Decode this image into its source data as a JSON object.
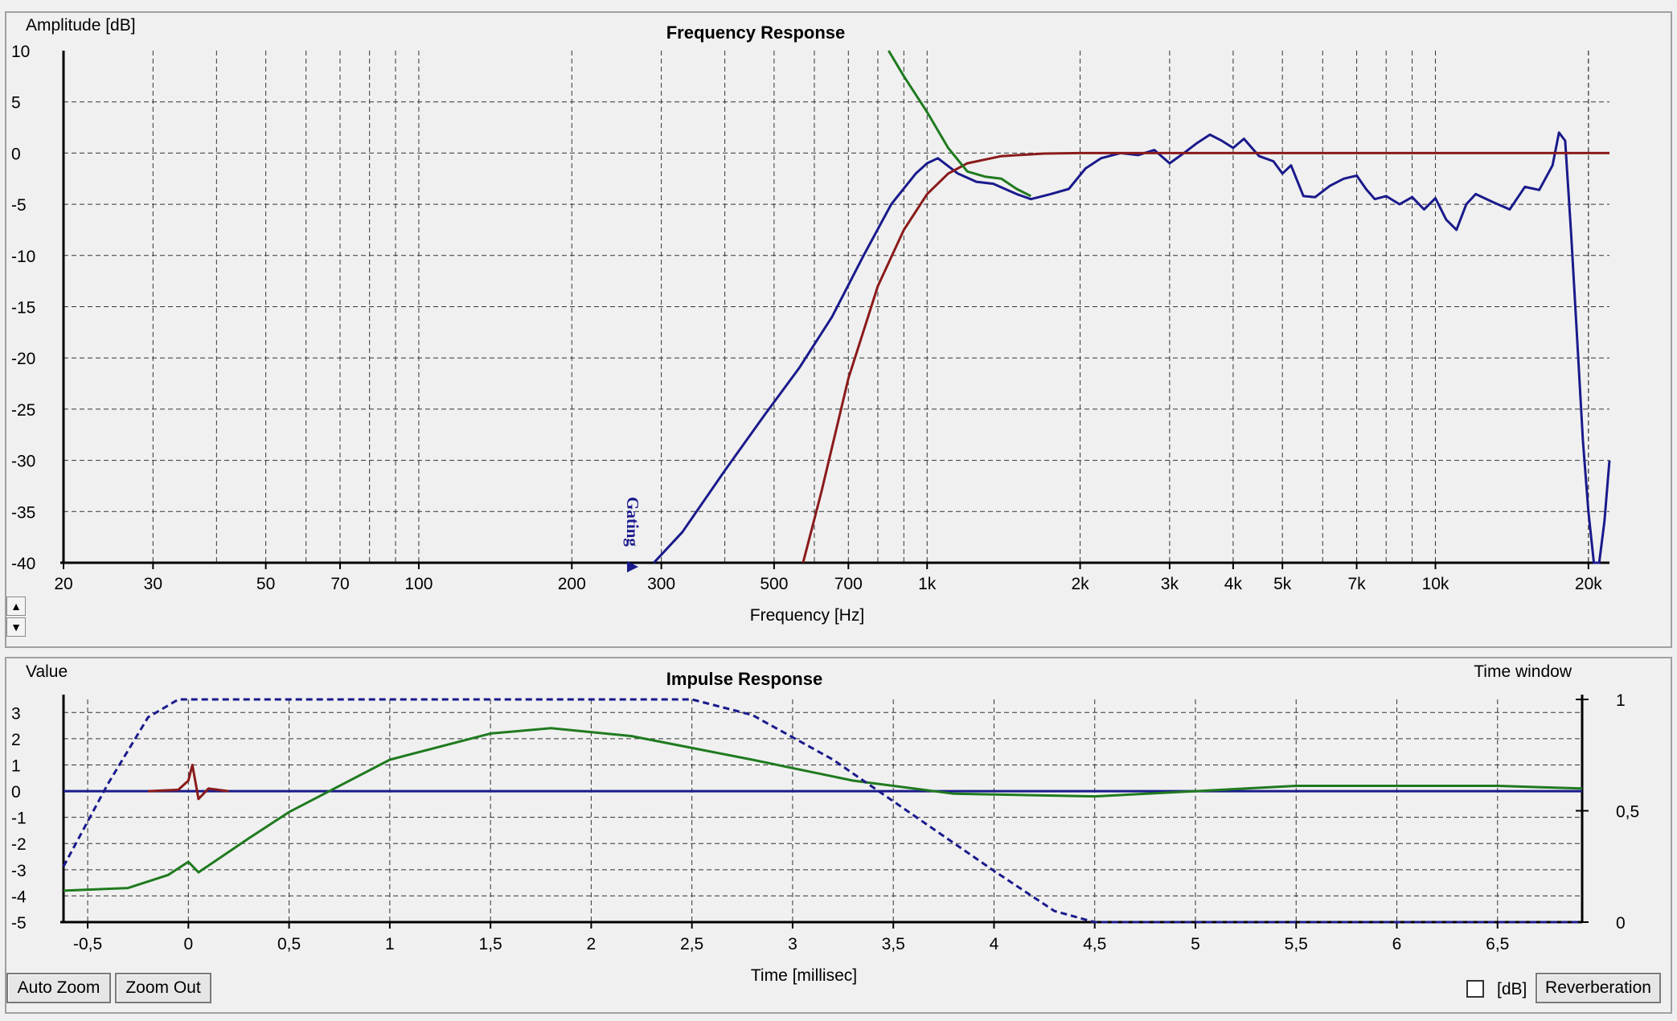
{
  "frequency_panel": {
    "title": "Frequency Response",
    "y_axis_label": "Amplitude [dB]",
    "x_axis_label": "Frequency [Hz]",
    "gating_marker": "Gating",
    "y_ticks": [
      "10",
      "5",
      "0",
      "-5",
      "-10",
      "-15",
      "-20",
      "-25",
      "-30",
      "-35",
      "-40"
    ],
    "x_ticks": [
      "20",
      "30",
      "50",
      "70",
      "100",
      "200",
      "300",
      "500",
      "700",
      "1k",
      "2k",
      "3k",
      "4k",
      "5k",
      "7k",
      "10k",
      "20k"
    ],
    "spin_up": "▲",
    "spin_down": "▼"
  },
  "impulse_panel": {
    "title": "Impulse Response",
    "y_axis_label": "Value",
    "y2_axis_label": "Time window",
    "x_axis_label": "Time [millisec]",
    "y_ticks": [
      "3",
      "2",
      "1",
      "0",
      "-1",
      "-2",
      "-3",
      "-4",
      "-5"
    ],
    "y2_ticks": [
      "1",
      "0,5",
      "0"
    ],
    "x_ticks": [
      "-0,5",
      "0",
      "0,5",
      "1",
      "1,5",
      "2",
      "2,5",
      "3",
      "3,5",
      "4",
      "4,5",
      "5",
      "5,5",
      "6",
      "6,5"
    ]
  },
  "buttons": {
    "auto_zoom": "Auto Zoom",
    "zoom_out": "Zoom Out",
    "db_checkbox_label": "[dB]",
    "db_checked": false,
    "reverberation": "Reverberation"
  },
  "colors": {
    "blue": "#1a1a8c",
    "red": "#8b1a1a",
    "green": "#1f7a1f",
    "grid": "#333333"
  },
  "chart_data": [
    {
      "type": "line",
      "title": "Frequency Response",
      "xlabel": "Frequency [Hz]",
      "ylabel": "Amplitude [dB]",
      "xscale": "log",
      "xlim": [
        20,
        22000
      ],
      "ylim": [
        -40,
        10
      ],
      "grid": true,
      "series": [
        {
          "color": "#1a1a8c",
          "x": [
            290,
            330,
            400,
            480,
            560,
            650,
            750,
            850,
            950,
            1000,
            1050,
            1150,
            1250,
            1350,
            1500,
            1600,
            1750,
            1900,
            2050,
            2200,
            2400,
            2600,
            2800,
            3000,
            3200,
            3400,
            3600,
            3800,
            4000,
            4200,
            4500,
            4800,
            5000,
            5200,
            5500,
            5800,
            6200,
            6600,
            7000,
            7300,
            7600,
            8000,
            8500,
            9000,
            9500,
            10000,
            10500,
            11000,
            11500,
            12000,
            13000,
            14000,
            15000,
            16000,
            17000,
            17500,
            18000,
            18500,
            19000,
            19500,
            20000,
            20500,
            21000,
            21500,
            22000
          ],
          "y": [
            -40,
            -37,
            -31,
            -25.5,
            -21,
            -16,
            -10,
            -5,
            -2,
            -1,
            -0.5,
            -2,
            -2.8,
            -3,
            -4,
            -4.5,
            -4,
            -3.5,
            -1.5,
            -0.5,
            0,
            -0.2,
            0.3,
            -1,
            0,
            1,
            1.8,
            1.2,
            0.5,
            1.4,
            -0.3,
            -0.8,
            -2,
            -1.2,
            -4.2,
            -4.3,
            -3.2,
            -2.5,
            -2.2,
            -3.5,
            -4.5,
            -4.2,
            -5,
            -4.3,
            -5.5,
            -4.4,
            -6.5,
            -7.5,
            -5,
            -4,
            -4.8,
            -5.5,
            -3.3,
            -3.6,
            -1.2,
            2,
            1.2,
            -8,
            -18,
            -28,
            -35,
            -40,
            -40,
            -36,
            -30
          ]
        },
        {
          "color": "#8b1a1a",
          "x": [
            570,
            620,
            700,
            800,
            900,
            1000,
            1100,
            1200,
            1400,
            1700,
            2000,
            3000,
            5000,
            10000,
            22000
          ],
          "y": [
            -40,
            -33,
            -22,
            -13,
            -7.5,
            -4,
            -2,
            -1,
            -0.3,
            -0.05,
            0,
            0,
            0,
            0,
            0
          ]
        },
        {
          "color": "#1f7a1f",
          "x": [
            840,
            900,
            1000,
            1100,
            1200,
            1300,
            1400,
            1500,
            1600
          ],
          "y": [
            10,
            7.5,
            4,
            0.5,
            -1.8,
            -2.3,
            -2.5,
            -3.5,
            -4.2
          ]
        }
      ]
    },
    {
      "type": "line",
      "title": "Impulse Response",
      "xlabel": "Time [millisec]",
      "ylabel": "Value",
      "y2label": "Time window",
      "xlim": [
        -0.62,
        6.92
      ],
      "ylim": [
        -5,
        3.5
      ],
      "y2lim": [
        0,
        1
      ],
      "grid": true,
      "series": [
        {
          "color": "#1a1a8c",
          "x": [
            -0.62,
            6.92
          ],
          "y": [
            0,
            0
          ]
        },
        {
          "color": "#8b1a1a",
          "x": [
            -0.2,
            -0.05,
            0,
            0.02,
            0.05,
            0.1,
            0.2
          ],
          "y": [
            0,
            0.05,
            0.4,
            1,
            -0.3,
            0.1,
            0
          ]
        },
        {
          "color": "#1f7a1f",
          "x": [
            -0.62,
            -0.3,
            -0.1,
            0,
            0.05,
            0.3,
            0.5,
            0.7,
            1,
            1.5,
            1.8,
            2.2,
            2.8,
            3.3,
            3.8,
            4.5,
            5,
            5.5,
            6,
            6.5,
            6.92
          ],
          "y": [
            -3.8,
            -3.7,
            -3.2,
            -2.7,
            -3.1,
            -1.8,
            -0.8,
            0,
            1.2,
            2.2,
            2.4,
            2.1,
            1.2,
            0.4,
            -0.1,
            -0.2,
            0,
            0.2,
            0.2,
            0.2,
            0.1
          ]
        },
        {
          "color": "#1a1a8c",
          "axis": "y2",
          "dashed": true,
          "x": [
            -0.62,
            -0.4,
            -0.2,
            -0.05,
            2.5,
            2.8,
            3.2,
            3.6,
            4.0,
            4.3,
            4.5,
            6.92
          ],
          "y": [
            0.25,
            0.62,
            0.92,
            1,
            1,
            0.93,
            0.73,
            0.48,
            0.23,
            0.05,
            0,
            0
          ]
        }
      ]
    }
  ]
}
